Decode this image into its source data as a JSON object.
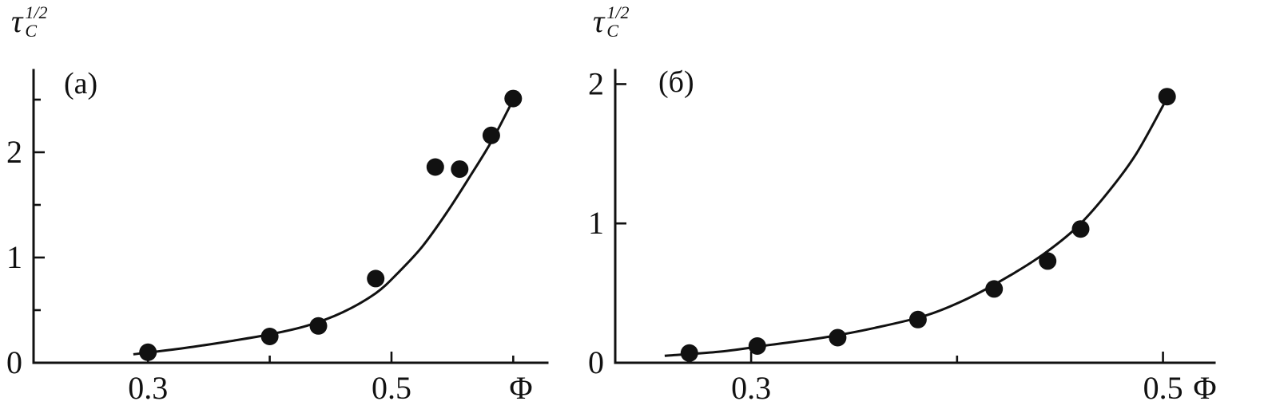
{
  "figure": {
    "background": "#ffffff",
    "ink_color": "#111111",
    "y_axis_title": {
      "base": "τ",
      "sub": "C",
      "sup": "1/2"
    }
  },
  "chart_data": [
    {
      "type": "scatter",
      "panel_label": "(а)",
      "xlabel": "Φ",
      "ylabel": "tau_C^(1/2)",
      "xlim": [
        0.206,
        0.628
      ],
      "ylim": [
        0,
        2.78
      ],
      "grid": false,
      "legend": null,
      "x_ticks": [
        {
          "value": 0.3,
          "label": "0.3"
        },
        {
          "value": 0.4,
          "label": ""
        },
        {
          "value": 0.5,
          "label": "0.5"
        },
        {
          "value": 0.6,
          "label": ""
        }
      ],
      "y_ticks": [
        {
          "value": 0,
          "label": "0"
        },
        {
          "value": 0.5,
          "label": ""
        },
        {
          "value": 1,
          "label": "1"
        },
        {
          "value": 1.5,
          "label": ""
        },
        {
          "value": 2,
          "label": "2"
        },
        {
          "value": 2.5,
          "label": ""
        }
      ],
      "points": [
        [
          0.3,
          0.1
        ],
        [
          0.4,
          0.25
        ],
        [
          0.44,
          0.35
        ],
        [
          0.487,
          0.8
        ],
        [
          0.536,
          1.86
        ],
        [
          0.556,
          1.84
        ],
        [
          0.582,
          2.16
        ],
        [
          0.6,
          2.51
        ]
      ],
      "curve": [
        [
          0.288,
          0.08
        ],
        [
          0.33,
          0.14
        ],
        [
          0.37,
          0.21
        ],
        [
          0.4,
          0.27
        ],
        [
          0.43,
          0.35
        ],
        [
          0.46,
          0.48
        ],
        [
          0.487,
          0.66
        ],
        [
          0.505,
          0.85
        ],
        [
          0.525,
          1.1
        ],
        [
          0.545,
          1.42
        ],
        [
          0.565,
          1.78
        ],
        [
          0.583,
          2.12
        ],
        [
          0.6,
          2.5
        ]
      ]
    },
    {
      "type": "scatter",
      "panel_label": "(б)",
      "xlabel": "Φ",
      "ylabel": "tau_C^(1/2)",
      "xlim": [
        0.234,
        0.525
      ],
      "ylim": [
        0,
        2.1
      ],
      "grid": false,
      "legend": null,
      "x_ticks": [
        {
          "value": 0.3,
          "label": "0.3"
        },
        {
          "value": 0.4,
          "label": ""
        },
        {
          "value": 0.5,
          "label": "0.5"
        }
      ],
      "y_ticks": [
        {
          "value": 0,
          "label": "0"
        },
        {
          "value": 1,
          "label": "1"
        },
        {
          "value": 2,
          "label": "2"
        }
      ],
      "points": [
        [
          0.27,
          0.07
        ],
        [
          0.303,
          0.12
        ],
        [
          0.342,
          0.18
        ],
        [
          0.381,
          0.31
        ],
        [
          0.418,
          0.53
        ],
        [
          0.444,
          0.73
        ],
        [
          0.46,
          0.96
        ],
        [
          0.502,
          1.91
        ]
      ],
      "curve": [
        [
          0.258,
          0.05
        ],
        [
          0.285,
          0.08
        ],
        [
          0.31,
          0.13
        ],
        [
          0.335,
          0.18
        ],
        [
          0.36,
          0.25
        ],
        [
          0.385,
          0.34
        ],
        [
          0.405,
          0.46
        ],
        [
          0.425,
          0.62
        ],
        [
          0.442,
          0.78
        ],
        [
          0.458,
          0.97
        ],
        [
          0.472,
          1.2
        ],
        [
          0.487,
          1.5
        ],
        [
          0.502,
          1.9
        ]
      ]
    }
  ]
}
